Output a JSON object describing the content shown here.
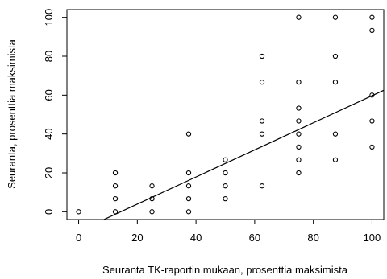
{
  "chart_data": {
    "type": "scatter",
    "xlabel": "Seuranta TK-raportin mukaan, prosenttia maksimista",
    "ylabel": "Seuranta, prosenttia maksimista",
    "xlim": [
      -4,
      104
    ],
    "ylim": [
      -4,
      104
    ],
    "xticks": [
      0,
      20,
      40,
      60,
      80,
      100
    ],
    "yticks": [
      0,
      20,
      40,
      60,
      80,
      100
    ],
    "x_tick_labels": [
      "0",
      "20",
      "40",
      "60",
      "80",
      "100"
    ],
    "y_tick_labels": [
      "0",
      "20",
      "40",
      "60",
      "80",
      "100"
    ],
    "grid": false,
    "legend": "none",
    "points": [
      [
        0,
        0
      ],
      [
        12.5,
        0
      ],
      [
        12.5,
        6.7
      ],
      [
        12.5,
        13.3
      ],
      [
        12.5,
        20
      ],
      [
        25,
        0
      ],
      [
        25,
        6.7
      ],
      [
        25,
        13.3
      ],
      [
        37.5,
        0
      ],
      [
        37.5,
        6.7
      ],
      [
        37.5,
        13.3
      ],
      [
        37.5,
        20
      ],
      [
        37.5,
        40
      ],
      [
        50,
        6.7
      ],
      [
        50,
        13.3
      ],
      [
        50,
        20
      ],
      [
        50,
        26.7
      ],
      [
        62.5,
        13.3
      ],
      [
        62.5,
        40
      ],
      [
        62.5,
        46.7
      ],
      [
        62.5,
        66.7
      ],
      [
        62.5,
        80
      ],
      [
        75,
        20
      ],
      [
        75,
        26.7
      ],
      [
        75,
        33.3
      ],
      [
        75,
        40
      ],
      [
        75,
        46.7
      ],
      [
        75,
        53.3
      ],
      [
        75,
        66.7
      ],
      [
        75,
        100
      ],
      [
        87.5,
        26.7
      ],
      [
        87.5,
        40
      ],
      [
        87.5,
        66.7
      ],
      [
        87.5,
        80
      ],
      [
        87.5,
        100
      ],
      [
        100,
        33.3
      ],
      [
        100,
        46.7
      ],
      [
        100,
        60
      ],
      [
        100,
        93.3
      ],
      [
        100,
        100
      ]
    ],
    "trend_line": {
      "x": [
        0,
        104
      ],
      "y": [
        -10,
        62.5
      ]
    }
  }
}
